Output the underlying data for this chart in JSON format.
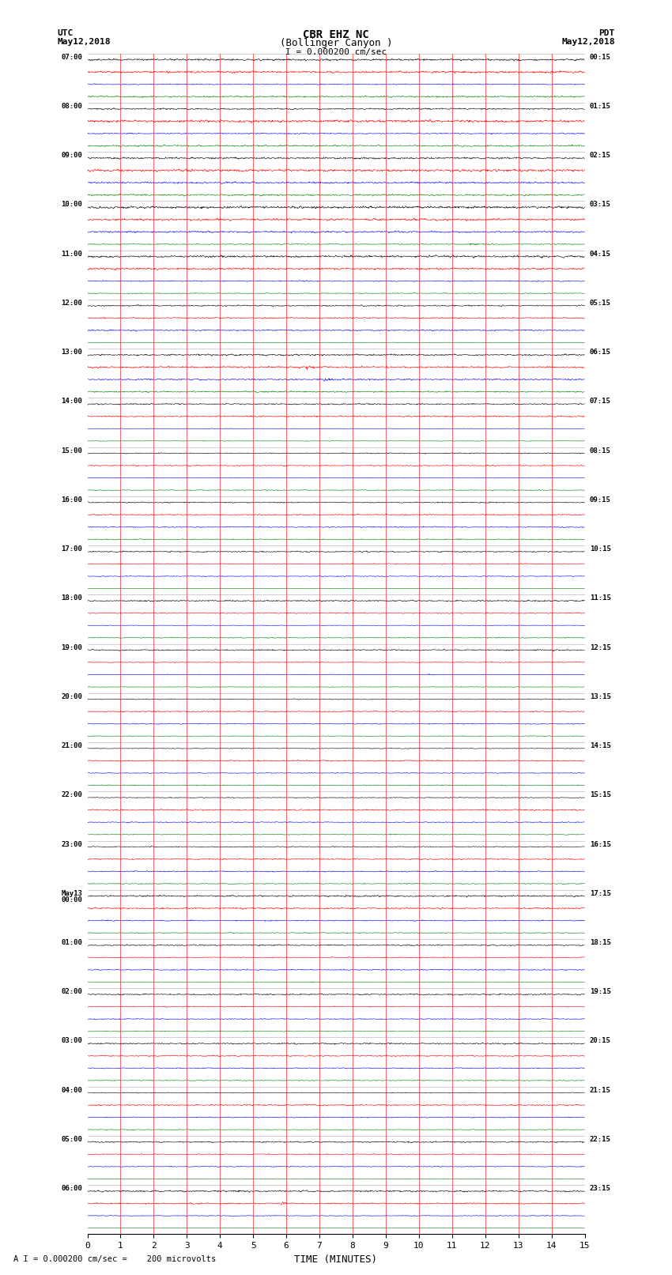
{
  "title_line1": "CBR EHZ NC",
  "title_line2": "(Bollinger Canyon )",
  "scale_label": "I = 0.000200 cm/sec",
  "left_header": "UTC\nMay12,2018",
  "right_header": "PDT\nMay12,2018",
  "bottom_note": "A I = 0.000200 cm/sec =    200 microvolts",
  "xlabel": "TIME (MINUTES)",
  "left_times": [
    "07:00",
    "08:00",
    "09:00",
    "10:00",
    "11:00",
    "12:00",
    "13:00",
    "14:00",
    "15:00",
    "16:00",
    "17:00",
    "18:00",
    "19:00",
    "20:00",
    "21:00",
    "22:00",
    "23:00",
    "May13\n00:00",
    "01:00",
    "02:00",
    "03:00",
    "04:00",
    "05:00",
    "06:00"
  ],
  "right_times": [
    "00:15",
    "01:15",
    "02:15",
    "03:15",
    "04:15",
    "05:15",
    "06:15",
    "07:15",
    "08:15",
    "09:15",
    "10:15",
    "11:15",
    "12:15",
    "13:15",
    "14:15",
    "15:15",
    "16:15",
    "17:15",
    "18:15",
    "19:15",
    "20:15",
    "21:15",
    "22:15",
    "23:15"
  ],
  "colors": [
    "black",
    "red",
    "blue",
    "green"
  ],
  "n_hour_blocks": 24,
  "n_traces_per_block": 4,
  "minutes": 15,
  "bg_color": "white",
  "vline_color": "red",
  "vline_positions": [
    1,
    2,
    3,
    4,
    5,
    6,
    7,
    8,
    9,
    10,
    11,
    12,
    13,
    14
  ],
  "noise_base": 0.06,
  "seed": 42
}
